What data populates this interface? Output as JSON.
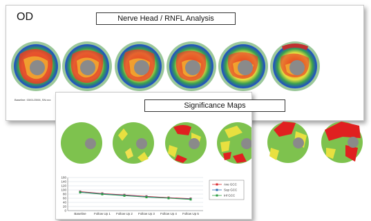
{
  "eye": "OD",
  "top_panel": {
    "title": "Nerve Head / RNFL Analysis",
    "baseline_note": "Baseline: 03/01/2006, SN:xxx"
  },
  "bottom_panel": {
    "title": "Significance Maps"
  },
  "chart_data": {
    "type": "line",
    "categories": [
      "Baseline",
      "Follow Up 1",
      "Follow Up 2",
      "Follow Up 3",
      "Follow Up 4",
      "Follow Up 5"
    ],
    "ylim": [
      0,
      160
    ],
    "yticks": [
      0,
      20,
      40,
      60,
      80,
      100,
      120,
      140,
      160
    ],
    "series": [
      {
        "name": "Ave GCC",
        "color": "#d9262b",
        "values": [
          92,
          83,
          76,
          69,
          63,
          58
        ]
      },
      {
        "name": "Sup GCC",
        "color": "#2a6cb0",
        "values": [
          90,
          81,
          74,
          67,
          61,
          56
        ]
      },
      {
        "name": "Inf GCC",
        "color": "#2e9e45",
        "values": [
          88,
          79,
          72,
          65,
          60,
          54
        ]
      }
    ]
  }
}
